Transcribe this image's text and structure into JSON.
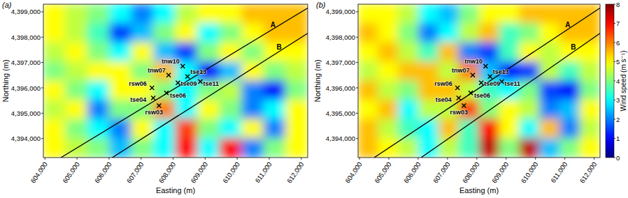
{
  "chart_data": [
    {
      "type": "heatmap",
      "title": "(a)",
      "xlabel": "Easting (m)",
      "ylabel": "Northing (m)",
      "xlim": [
        603950,
        612200
      ],
      "ylim": [
        4393250,
        4399300
      ],
      "xticks": [
        {
          "value": 604000,
          "label": "604,000"
        },
        {
          "value": 605000,
          "label": "605,000"
        },
        {
          "value": 606000,
          "label": "606,000"
        },
        {
          "value": 607000,
          "label": "607,000"
        },
        {
          "value": 608000,
          "label": "608,000"
        },
        {
          "value": 609000,
          "label": "609,000"
        },
        {
          "value": 610000,
          "label": "610,000"
        },
        {
          "value": 611000,
          "label": "611,000"
        },
        {
          "value": 612000,
          "label": "612,000"
        }
      ],
      "yticks": [
        {
          "value": 4394000,
          "label": "4,394,000"
        },
        {
          "value": 4395000,
          "label": "4,395,000"
        },
        {
          "value": 4396000,
          "label": "4,396,000"
        },
        {
          "value": 4397000,
          "label": "4,397,000"
        },
        {
          "value": 4398000,
          "label": "4,398,000"
        },
        {
          "value": 4399000,
          "label": "4,399,000"
        }
      ],
      "cells": [
        [
          5,
          4.5,
          4,
          3,
          2,
          3,
          4.5,
          5,
          5,
          5.5,
          5.5,
          5.5
        ],
        [
          5,
          4.5,
          3.5,
          1.5,
          2.5,
          4,
          5,
          3,
          4,
          5,
          5.5,
          5.5
        ],
        [
          4.5,
          5,
          4,
          3,
          5,
          2.5,
          1.5,
          4,
          5,
          4,
          5,
          5
        ],
        [
          4,
          4.5,
          5,
          5,
          4,
          5.5,
          3,
          1,
          2.5,
          5,
          4,
          4.5
        ],
        [
          5,
          4,
          3,
          5,
          5,
          4,
          3,
          4,
          4.5,
          2,
          1,
          4
        ],
        [
          4.5,
          5,
          2,
          4,
          4,
          6,
          3,
          5,
          4,
          2,
          3,
          5
        ],
        [
          5,
          4,
          3,
          2,
          5,
          3,
          6.5,
          4,
          3,
          5,
          2,
          5
        ],
        [
          5,
          4.5,
          4,
          2.5,
          4,
          3,
          7,
          3,
          7,
          2,
          4,
          5
        ]
      ],
      "points": {
        "labels": [
          "tnw10",
          "tnw07",
          "tse13",
          "tse09",
          "tse11",
          "rsw06",
          "tse04",
          "tse06",
          "rsw03"
        ],
        "x": [
          608300,
          607860,
          608450,
          608150,
          608850,
          607340,
          607380,
          607790,
          607560
        ],
        "y": [
          4396850,
          4396500,
          4396450,
          4396200,
          4396250,
          4396000,
          4395600,
          4395800,
          4395300
        ],
        "marker": "x",
        "color": "#000000"
      },
      "lines": [
        {
          "label": "A",
          "x": [
            604500,
            612200
          ],
          "y": [
            4393250,
            4399150
          ],
          "color": "#000000"
        },
        {
          "label": "B",
          "x": [
            606100,
            612200
          ],
          "y": [
            4393250,
            4398150
          ],
          "color": "#000000"
        }
      ]
    },
    {
      "type": "heatmap",
      "title": "(b)",
      "xlabel": "Easting (m)",
      "ylabel": "Northing (m)",
      "xlim": [
        603950,
        612200
      ],
      "ylim": [
        4393250,
        4399300
      ],
      "xticks": [
        {
          "value": 604000,
          "label": "604,000"
        },
        {
          "value": 605000,
          "label": "605,000"
        },
        {
          "value": 606000,
          "label": "606,000"
        },
        {
          "value": 607000,
          "label": "607,000"
        },
        {
          "value": 608000,
          "label": "608,000"
        },
        {
          "value": 609000,
          "label": "609,000"
        },
        {
          "value": 610000,
          "label": "610,000"
        },
        {
          "value": 611000,
          "label": "611,000"
        },
        {
          "value": 612000,
          "label": "612,000"
        }
      ],
      "yticks": [
        {
          "value": 4394000,
          "label": "4,394,000"
        },
        {
          "value": 4395000,
          "label": "4,395,000"
        },
        {
          "value": 4396000,
          "label": "4,396,000"
        },
        {
          "value": 4397000,
          "label": "4,397,000"
        },
        {
          "value": 4398000,
          "label": "4,398,000"
        },
        {
          "value": 4399000,
          "label": "4,399,000"
        }
      ],
      "cells": [
        [
          5,
          5,
          4.5,
          3,
          2.5,
          4,
          5,
          5,
          5.5,
          5.5,
          5.5,
          5.5
        ],
        [
          5.5,
          5,
          4,
          2,
          3,
          4.5,
          5.5,
          3.5,
          4,
          5,
          5.5,
          5.5
        ],
        [
          5,
          5.5,
          4.5,
          3.5,
          5.5,
          2,
          1.5,
          3.5,
          5,
          4.5,
          5,
          5
        ],
        [
          4.5,
          5,
          5.5,
          5.5,
          4.5,
          6,
          2.5,
          1,
          1.5,
          4.5,
          3.5,
          4.5
        ],
        [
          5.5,
          4.5,
          4,
          5.5,
          5.5,
          4.5,
          3.5,
          3,
          4,
          1.5,
          1,
          4
        ],
        [
          5,
          5.5,
          3,
          4.5,
          4.5,
          6.5,
          4,
          5,
          4.5,
          2,
          2.5,
          5
        ],
        [
          5.5,
          4.5,
          3.5,
          3,
          5.5,
          3.5,
          7,
          5,
          3,
          5.5,
          2,
          4.5
        ],
        [
          5.5,
          5,
          4.5,
          3,
          4.5,
          3.5,
          7.5,
          4,
          7.5,
          2.5,
          4,
          5
        ]
      ],
      "points": {
        "labels": [
          "tnw10",
          "tnw07",
          "tse13",
          "tse09",
          "tse11",
          "rsw06",
          "tse04",
          "tse06",
          "rsw03"
        ],
        "x": [
          608300,
          607860,
          608450,
          608150,
          608850,
          607340,
          607380,
          607790,
          607560
        ],
        "y": [
          4396850,
          4396500,
          4396450,
          4396200,
          4396250,
          4396000,
          4395600,
          4395800,
          4395300
        ],
        "marker": "x",
        "color": "#000000"
      },
      "lines": [
        {
          "label": "A",
          "x": [
            604500,
            612200
          ],
          "y": [
            4393250,
            4399150
          ],
          "color": "#000000"
        },
        {
          "label": "B",
          "x": [
            606100,
            612200
          ],
          "y": [
            4393250,
            4398150
          ],
          "color": "#000000"
        }
      ],
      "colorbar": {
        "label": "Wind speed (m s⁻¹)",
        "range": [
          0,
          8
        ],
        "ticks": [
          0,
          1,
          2,
          3,
          4,
          5,
          6,
          7,
          8
        ]
      }
    }
  ]
}
